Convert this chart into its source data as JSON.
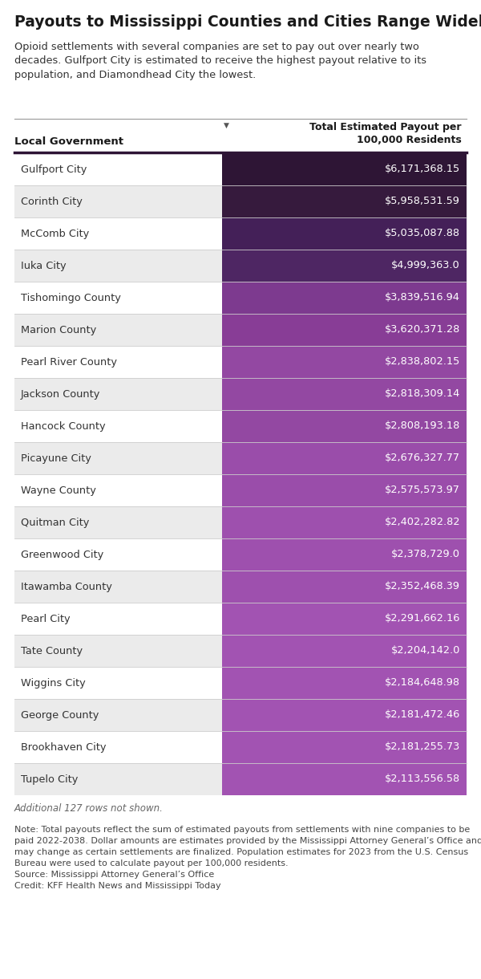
{
  "title": "Payouts to Mississippi Counties and Cities Range Widely",
  "subtitle": "Opioid settlements with several companies are set to pay out over nearly two\ndecades. Gulfport City is estimated to receive the highest payout relative to its\npopulation, and Diamondhead City the lowest.",
  "col1_header": "Local Government",
  "col2_header": "Total Estimated Payout per\n100,000 Residents",
  "rows": [
    {
      "name": "Gulfport City",
      "value": "$6,171,368.15",
      "bar_color": "#2e1535",
      "row_bg": "#ffffff"
    },
    {
      "name": "Corinth City",
      "value": "$5,958,531.59",
      "bar_color": "#361a3d",
      "row_bg": "#ebebeb"
    },
    {
      "name": "McComb City",
      "value": "$5,035,087.88",
      "bar_color": "#442058",
      "row_bg": "#ffffff"
    },
    {
      "name": "Iuka City",
      "value": "$4,999,363.0",
      "bar_color": "#4e2663",
      "row_bg": "#ebebeb"
    },
    {
      "name": "Tishomingo County",
      "value": "$3,839,516.94",
      "bar_color": "#7d3a8f",
      "row_bg": "#ffffff"
    },
    {
      "name": "Marion County",
      "value": "$3,620,371.28",
      "bar_color": "#883d96",
      "row_bg": "#ebebeb"
    },
    {
      "name": "Pearl River County",
      "value": "$2,838,802.15",
      "bar_color": "#9348a2",
      "row_bg": "#ffffff"
    },
    {
      "name": "Jackson County",
      "value": "$2,818,309.14",
      "bar_color": "#9348a2",
      "row_bg": "#ebebeb"
    },
    {
      "name": "Hancock County",
      "value": "$2,808,193.18",
      "bar_color": "#9348a2",
      "row_bg": "#ffffff"
    },
    {
      "name": "Picayune City",
      "value": "$2,676,327.77",
      "bar_color": "#9a4daa",
      "row_bg": "#ebebeb"
    },
    {
      "name": "Wayne County",
      "value": "$2,575,573.97",
      "bar_color": "#9a4daa",
      "row_bg": "#ffffff"
    },
    {
      "name": "Quitman City",
      "value": "$2,402,282.82",
      "bar_color": "#9e50ae",
      "row_bg": "#ebebeb"
    },
    {
      "name": "Greenwood City",
      "value": "$2,378,729.0",
      "bar_color": "#9e50ae",
      "row_bg": "#ffffff"
    },
    {
      "name": "Itawamba County",
      "value": "$2,352,468.39",
      "bar_color": "#9e50ae",
      "row_bg": "#ebebeb"
    },
    {
      "name": "Pearl City",
      "value": "$2,291,662.16",
      "bar_color": "#a253b2",
      "row_bg": "#ffffff"
    },
    {
      "name": "Tate County",
      "value": "$2,204,142.0",
      "bar_color": "#a253b2",
      "row_bg": "#ebebeb"
    },
    {
      "name": "Wiggins City",
      "value": "$2,184,648.98",
      "bar_color": "#a253b2",
      "row_bg": "#ffffff"
    },
    {
      "name": "George County",
      "value": "$2,181,472.46",
      "bar_color": "#a253b2",
      "row_bg": "#ebebeb"
    },
    {
      "name": "Brookhaven City",
      "value": "$2,181,255.73",
      "bar_color": "#a253b2",
      "row_bg": "#ffffff"
    },
    {
      "name": "Tupelo City",
      "value": "$2,113,556.58",
      "bar_color": "#a253b2",
      "row_bg": "#ebebeb"
    }
  ],
  "additional_rows_note": "Additional 127 rows not shown.",
  "footnote": "Note: Total payouts reflect the sum of estimated payouts from settlements with nine companies to be\npaid 2022-2038. Dollar amounts are estimates provided by the Mississippi Attorney General’s Office and\nmay change as certain settlements are finalized. Population estimates for 2023 from the U.S. Census\nBureau were used to calculate payout per 100,000 residents.\nSource: Mississippi Attorney General’s Office\nCredit: KFF Health News and Mississippi Today",
  "background_color": "#ffffff",
  "divider_color": "#2e1535",
  "col_split": 0.46
}
